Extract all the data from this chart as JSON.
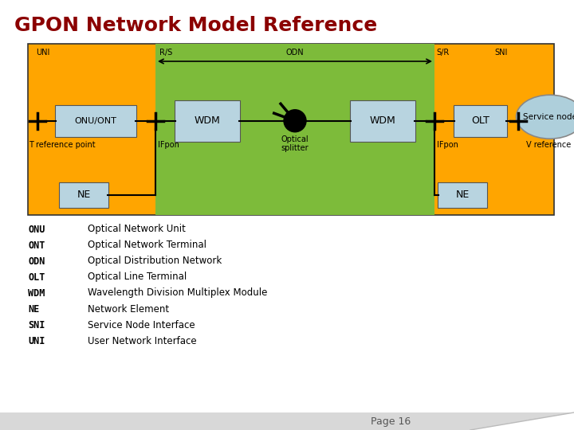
{
  "title": "GPON Network Model Reference",
  "title_color": "#8B0000",
  "title_fontsize": 18,
  "bg_color": "#FFFFFF",
  "orange_color": "#FFA500",
  "green_color": "#7DBB3A",
  "box_color": "#B8D4E0",
  "service_node_color": "#AECFDB",
  "labels": {
    "UNI": "UNI",
    "RS": "R/S",
    "ODN": "ODN",
    "SR": "S/R",
    "SNI": "SNI",
    "T_ref": "T reference point",
    "V_ref": "V reference point",
    "IFpon_left": "IFpon",
    "IFpon_right": "IFpon",
    "ONU_ONT": "ONU/ONT",
    "OLT": "OLT",
    "WDM_left": "WDM",
    "WDM_right": "WDM",
    "NE_left": "NE",
    "NE_right": "NE",
    "optical_splitter": "Optical\nsplitter",
    "service_node": "Service node"
  },
  "abbreviations": [
    [
      "ONU",
      "Optical Network Unit"
    ],
    [
      "ONT",
      "Optical Network Terminal"
    ],
    [
      "ODN",
      "Optical Distribution Network"
    ],
    [
      "OLT",
      "Optical Line Terminal"
    ],
    [
      "WDM",
      "Wavelength Division Multiplex Module"
    ],
    [
      "NE",
      "Network Element"
    ],
    [
      "SNI",
      "Service Node Interface"
    ],
    [
      "UNI",
      "User Network Interface"
    ]
  ],
  "page_number": "Page 16"
}
